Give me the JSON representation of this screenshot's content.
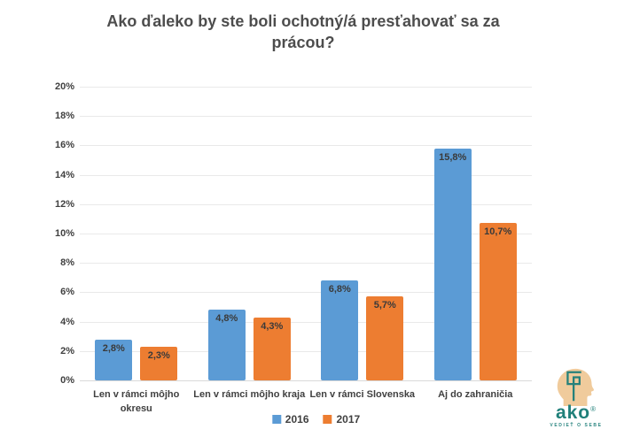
{
  "title": "Ako ďaleko by ste boli ochotný/á presťahovať sa za prácou?",
  "chart_data": {
    "type": "bar",
    "title": "Ako ďaleko by ste boli ochotný/á presťahovať sa za prácou?",
    "categories": [
      "Len v rámci môjho\nokresu",
      "Len v rámci môjho kraja",
      "Len v rámci Slovenska",
      "Aj do zahraničia"
    ],
    "series": [
      {
        "name": "2016",
        "color": "#5B9BD5",
        "values": [
          2.8,
          4.8,
          6.8,
          15.8
        ],
        "labels": [
          "2,8%",
          "4,8%",
          "6,8%",
          "15,8%"
        ]
      },
      {
        "name": "2017",
        "color": "#ED7D31",
        "values": [
          2.3,
          4.3,
          5.7,
          10.7
        ],
        "labels": [
          "2,3%",
          "4,3%",
          "5,7%",
          "10,7%"
        ]
      }
    ],
    "xlabel": "",
    "ylabel": "",
    "ylim": [
      0,
      20
    ],
    "ytick_step": 2,
    "ytick_labels": [
      "0%",
      "2%",
      "4%",
      "6%",
      "8%",
      "10%",
      "12%",
      "14%",
      "16%",
      "18%",
      "20%"
    ],
    "grid": true,
    "legend_position": "bottom"
  },
  "logo": {
    "word": "ako",
    "registered": "®",
    "tagline": "vedieť o sebe",
    "teal": "#26817B",
    "tan": "#F0CB9C"
  }
}
